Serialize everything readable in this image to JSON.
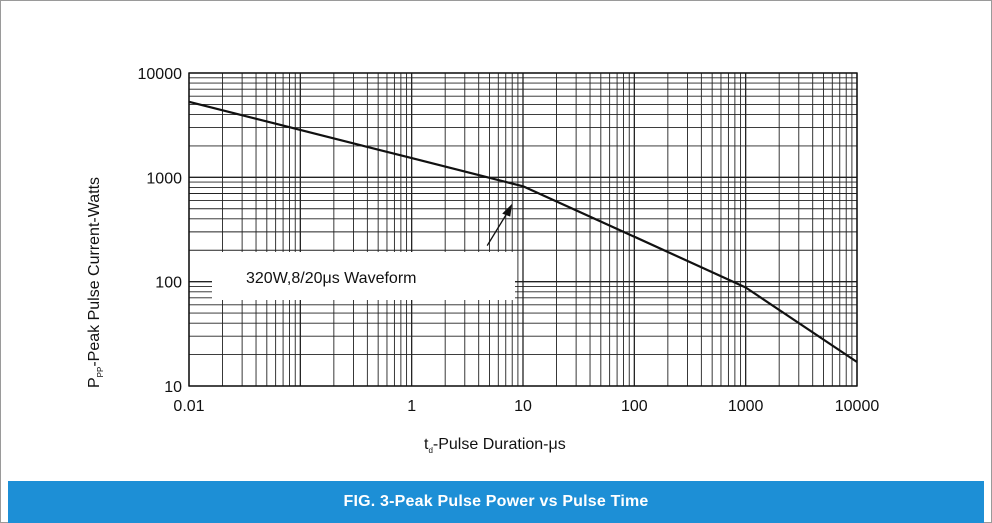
{
  "chart_data": {
    "type": "line",
    "title": "",
    "xlabel": {
      "main": "t",
      "sub": "d",
      "rest": "-Pulse Duration-μs"
    },
    "ylabel": {
      "main": "P",
      "sub": "PP",
      "rest": "-Peak  Pulse  Current-Watts"
    },
    "x_scale": "log",
    "y_scale": "log",
    "xlim": [
      0.01,
      10000
    ],
    "ylim": [
      10,
      10000
    ],
    "x_ticks": [
      "0.01",
      "1",
      "10",
      "100",
      "1000",
      "10000"
    ],
    "x_tick_values": [
      0.01,
      1,
      10,
      100,
      1000,
      10000
    ],
    "y_ticks": [
      "10",
      "100",
      "1000",
      "10000"
    ],
    "y_tick_values": [
      10,
      100,
      1000,
      10000
    ],
    "grid": true,
    "series": [
      {
        "name": "",
        "color": "#111111",
        "x": [
          0.01,
          0.1,
          1,
          10,
          100,
          1000,
          10000
        ],
        "y": [
          5300,
          2850,
          1530,
          820,
          270,
          88,
          17
        ]
      }
    ],
    "annotation": {
      "text": "320W,8/20μs Waveform",
      "points_to": {
        "x": 8,
        "y": 560
      }
    }
  },
  "caption": "FIG. 3-Peak  Pulse  Power  vs  Pulse  Time",
  "colors": {
    "caption_bg": "#1d8fd6",
    "caption_text": "#ffffff",
    "line": "#111111",
    "grid": "#222222"
  }
}
